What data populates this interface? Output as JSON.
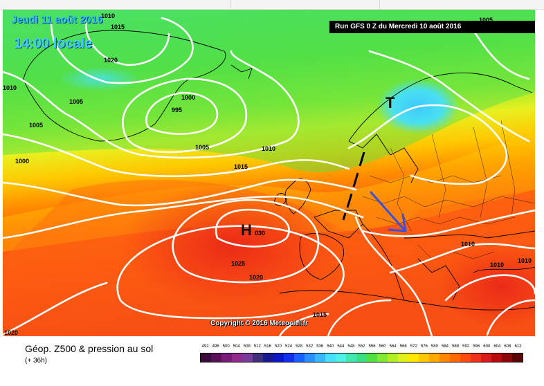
{
  "map": {
    "date_text": "Jeudi 11 août 2016",
    "time_text": "14:00 locale",
    "run_text": "Run GFS 0 Z du Mercredi 10 août 2016",
    "copyright": "Copyright © 2016 Meteociel.fr",
    "pressure_labels": [
      {
        "text": "1010",
        "role": "top-left"
      },
      {
        "text": "1015",
        "role": "top-left-2"
      },
      {
        "text": "1020",
        "role": "greenland-south"
      },
      {
        "text": "1010",
        "role": "left-edge"
      },
      {
        "text": "1005",
        "role": "greenland-west"
      },
      {
        "text": "1005",
        "role": "west"
      },
      {
        "text": "1000",
        "role": "west-low"
      },
      {
        "text": "1000",
        "role": "low-center-top"
      },
      {
        "text": "995",
        "role": "low-center"
      },
      {
        "text": "1005",
        "role": "atlantic"
      },
      {
        "text": "1010",
        "role": "uk-west"
      },
      {
        "text": "1015",
        "role": "atlantic-south"
      },
      {
        "text": "030",
        "role": "high-center"
      },
      {
        "text": "1025",
        "role": "high-south"
      },
      {
        "text": "1020",
        "role": "iberia-west"
      },
      {
        "text": "1015",
        "role": "africa"
      },
      {
        "text": "1020",
        "role": "bottom-left"
      },
      {
        "text": "1010",
        "role": "balkans"
      },
      {
        "text": "1010",
        "role": "turkey"
      },
      {
        "text": "1005",
        "role": "top-right"
      },
      {
        "text": "1010",
        "role": "bottom-right"
      }
    ],
    "high_symbol": "H",
    "low_symbol": "T"
  },
  "footer": {
    "title": "Géop. Z500 & pression au sol",
    "forecast_hour": "(+ 36h)",
    "scale": {
      "values": [
        "492",
        "496",
        "500",
        "504",
        "508",
        "512",
        "516",
        "520",
        "524",
        "528",
        "532",
        "536",
        "540",
        "544",
        "548",
        "552",
        "556",
        "560",
        "564",
        "568",
        "572",
        "576",
        "580",
        "584",
        "588",
        "592",
        "596",
        "600",
        "604",
        "608",
        "612"
      ],
      "colors": [
        "#3a0a3a",
        "#5a0f58",
        "#7a1a78",
        "#922a8c",
        "#7a3a9a",
        "#40307a",
        "#1a1a90",
        "#0a18c8",
        "#1030ee",
        "#1860ff",
        "#2a90ff",
        "#38b8ff",
        "#48e0ff",
        "#4cf0e8",
        "#40e8b0",
        "#38e080",
        "#50e040",
        "#80ea30",
        "#b0f020",
        "#e0f018",
        "#ffe800",
        "#ffc800",
        "#ffa800",
        "#ff8800",
        "#ff6a00",
        "#ff4a10",
        "#f03018",
        "#d81a1a",
        "#b80c0c",
        "#8a0808",
        "#5a0404"
      ]
    }
  }
}
